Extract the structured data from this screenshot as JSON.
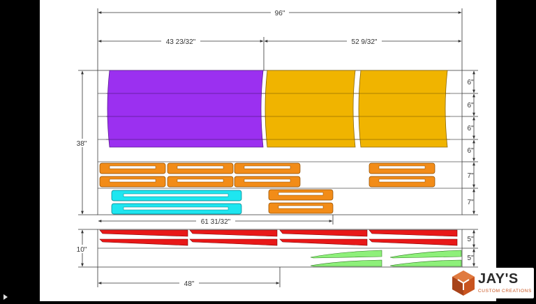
{
  "dimensions": {
    "total_width": "96\"",
    "left_section": "43 23/32\"",
    "right_section": "52 9/32\"",
    "sheet_height": "38\"",
    "sheet2_height": "10\"",
    "mid_width": "61 31/32\"",
    "bottom_width": "48\"",
    "row_heights_top": [
      "6\"",
      "6\"",
      "6\"",
      "6\""
    ],
    "row_heights_mid": [
      "7\"",
      "7\""
    ],
    "row_heights_bottom": [
      "5\"",
      "5\""
    ]
  },
  "part_colors": {
    "purple": "#9b30f0",
    "gold": "#f0b400",
    "orange": "#f28c18",
    "cyan": "#1ee6f0",
    "red": "#e81818",
    "green": "#8ef07a"
  },
  "logo": {
    "name": "JAY'S",
    "tagline": "CUSTOM CREATIONS"
  },
  "icons": [
    "play-indicator-icon",
    "jays-cube-logo-icon"
  ]
}
